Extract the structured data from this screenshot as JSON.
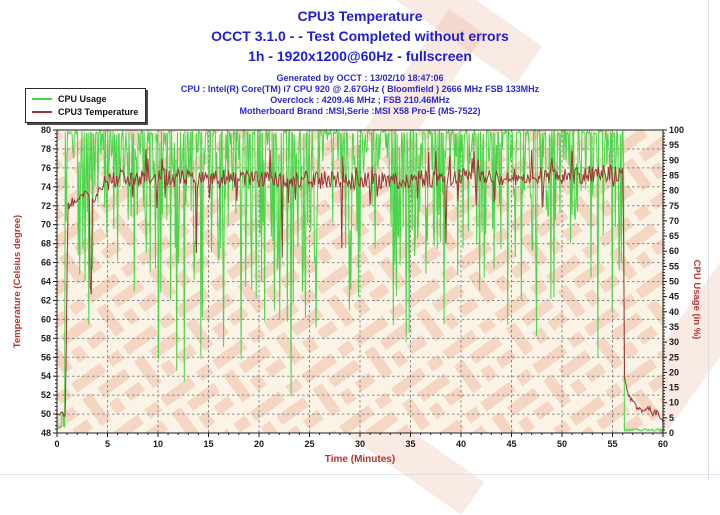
{
  "header": {
    "title_line1": "CPU3 Temperature",
    "title_line2": "OCCT 3.1.0 -  - Test Completed without errors",
    "title_line3": "1h - 1920x1200@60Hz - fullscreen",
    "info_line1": "Generated by OCCT : 13/02/10 18:47:06",
    "info_line2": "CPU : Intel(R) Core(TM) i7 CPU 920 @ 2.67GHz ( Bloomfield ) 2666 MHz FSB 133MHz",
    "info_line3": "Overclock : 4209.46 MHz ; FSB 210.46MHz",
    "info_line4": "Motherboard Brand :MSI,Serie :MSI X58 Pro-E (MS-7522)"
  },
  "legend": {
    "items": [
      {
        "label": "CPU Usage",
        "color": "#49d549"
      },
      {
        "label": "CPU3 Temperature",
        "color": "#9c3636"
      }
    ]
  },
  "chart_data": {
    "type": "line",
    "title": "CPU3 Temperature",
    "x_axis": {
      "label": "Time (Minutes)",
      "min": 0,
      "max": 60,
      "major_step": 5,
      "minor_step": 1
    },
    "y_left": {
      "label": "Temperature (Celsius degree)",
      "min": 48,
      "max": 80,
      "major_step": 2,
      "minor_step": 0.4
    },
    "y_right": {
      "label": "CPU Usage (in %)",
      "min": 0,
      "max": 100,
      "major_step": 5,
      "minor_step": 1
    },
    "grid": {
      "h_step": 2,
      "v_step": 5,
      "color": "#8a8a8a",
      "dash": "2.5,2.5"
    },
    "colors": {
      "plot_bg": "#fbf4e6",
      "frame": "#1d1d1d",
      "tick_text": "#1a1a1a",
      "axis_title": "#b5342c",
      "watermark": "#e07a58"
    },
    "seed": 20100213,
    "series": [
      {
        "name": "CPU Usage",
        "axis": "right",
        "color": "#49d549",
        "sample_dt": 0.075,
        "idle_before": {
          "until": 0.82,
          "value": 1.5
        },
        "active": {
          "from": 0.82,
          "to": 56.15,
          "base": 100,
          "dip_prob": 0.5,
          "dip_bands": [
            [
              0.55,
              3,
              20
            ],
            [
              0.3,
              20,
              42
            ],
            [
              0.12,
              42,
              65
            ],
            [
              0.03,
              65,
              88
            ]
          ]
        },
        "idle_after": {
          "from": 56.15,
          "value": 0.6
        },
        "events": [
          [
            12.6,
            17
          ],
          [
            23.2,
            12
          ],
          [
            34.6,
            30
          ],
          [
            47.5,
            32
          ],
          [
            55.0,
            40
          ]
        ]
      },
      {
        "name": "CPU3 Temperature",
        "axis": "left",
        "color": "#9c3636",
        "sample_dt": 0.1,
        "keypoints": [
          [
            0,
            50
          ],
          [
            0.85,
            50
          ],
          [
            0.95,
            62
          ],
          [
            1.1,
            72
          ],
          [
            1.6,
            72.5
          ],
          [
            2.5,
            73.2
          ],
          [
            3.2,
            73
          ],
          [
            3.35,
            58
          ],
          [
            3.5,
            72.5
          ],
          [
            4.5,
            74.2
          ],
          [
            6,
            75
          ],
          [
            10,
            75
          ],
          [
            20,
            74.8
          ],
          [
            30,
            74.6
          ],
          [
            40,
            75
          ],
          [
            50,
            75.2
          ],
          [
            55.9,
            75.5
          ],
          [
            56.05,
            76.2
          ],
          [
            56.2,
            53.8
          ],
          [
            56.5,
            52.2
          ],
          [
            57,
            51.2
          ],
          [
            57.5,
            50.6
          ],
          [
            58,
            50.3
          ],
          [
            58.5,
            50.8
          ],
          [
            59,
            50.1
          ],
          [
            59.5,
            50.2
          ],
          [
            59.9,
            49.2
          ],
          [
            60,
            49.1
          ]
        ],
        "noise": [
          {
            "from": 0,
            "to": 0.85,
            "amp": 0.25
          },
          {
            "from": 0.85,
            "to": 4.5,
            "amp": 0.5
          },
          {
            "from": 4.5,
            "to": 55.9,
            "amp": 0.95
          },
          {
            "from": 56.2,
            "to": 60,
            "amp": 0.3
          }
        ],
        "spike_prob": 0.05,
        "spike_amp": [
          1.2,
          3.0
        ],
        "events": [
          [
            8.8,
            78
          ],
          [
            13.8,
            67
          ],
          [
            22.3,
            66.5
          ],
          [
            28.2,
            67.5
          ],
          [
            38.5,
            68
          ],
          [
            51.0,
            77.8
          ]
        ]
      }
    ]
  }
}
